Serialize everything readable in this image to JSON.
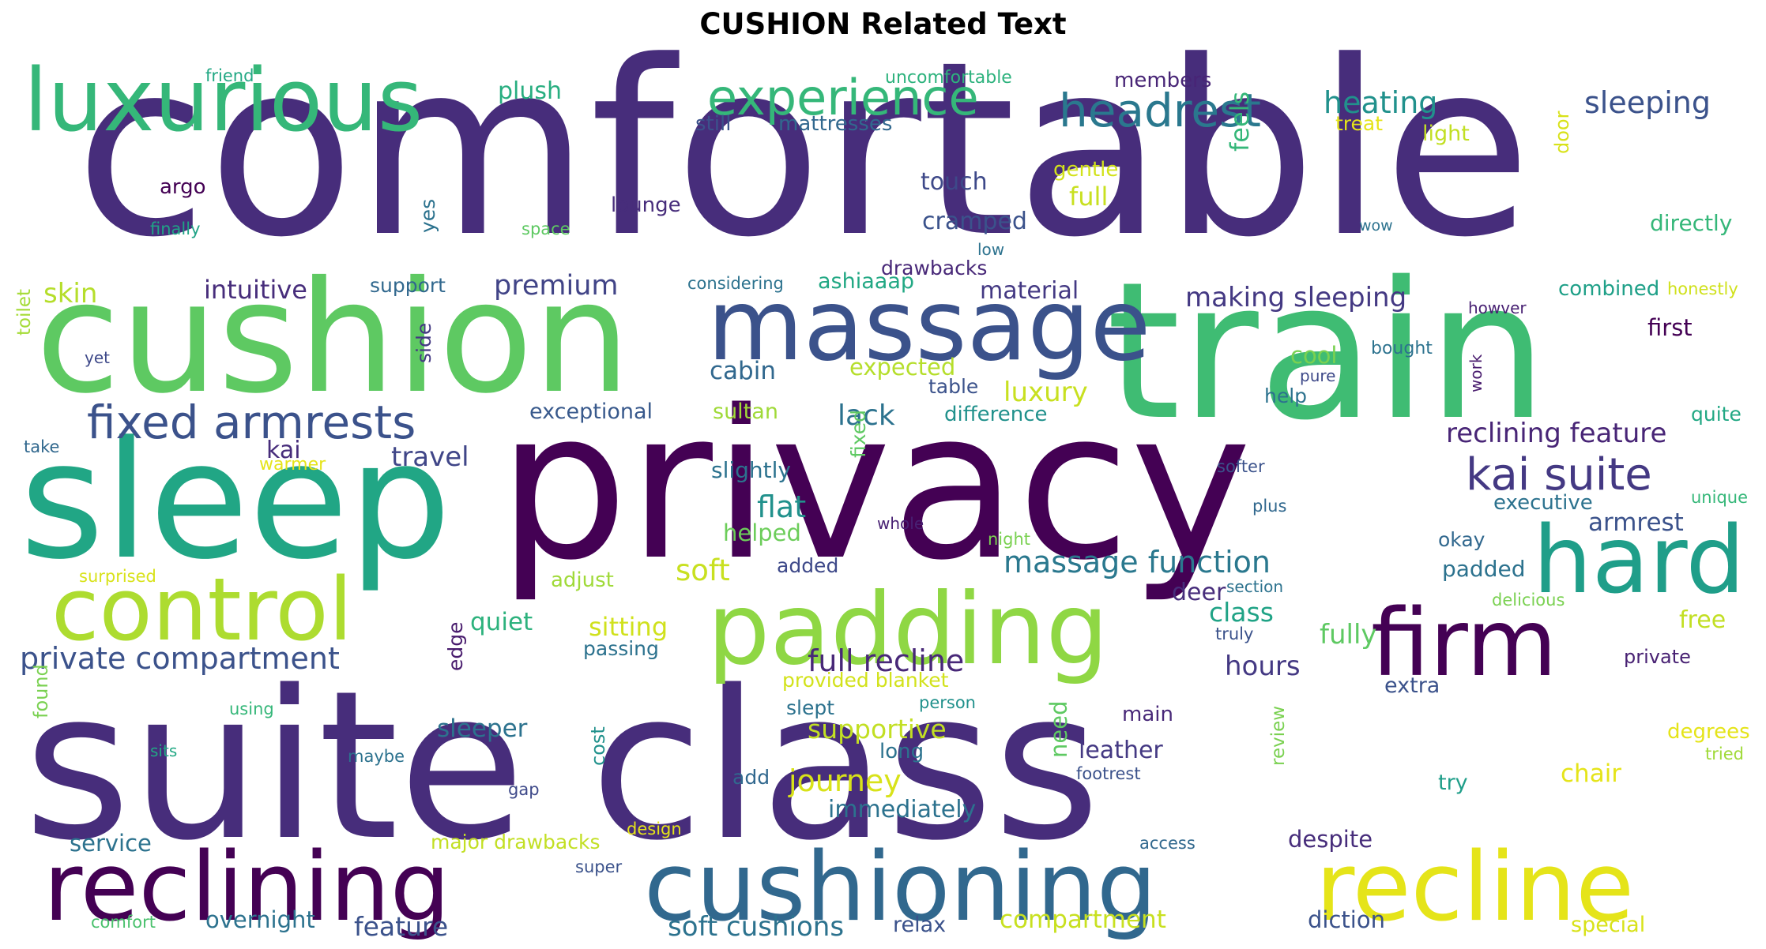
{
  "title": "CUSHION Related Text",
  "colors": {
    "darkPurple": "#440154",
    "indigo": "#472d7b",
    "deepBlue": "#3b528b",
    "steelBlue": "#2c728e",
    "teal": "#21918c",
    "seaGreen": "#28ae80",
    "green": "#5ec962",
    "lime": "#addc30",
    "yellow": "#e5e419"
  },
  "words": [
    {
      "text": "comfortable",
      "color": "#472d7b"
    },
    {
      "text": "cushion",
      "color": "#5ec962"
    },
    {
      "text": "train",
      "color": "#3fbc73"
    },
    {
      "text": "privacy",
      "color": "#440154"
    },
    {
      "text": "sleep",
      "color": "#21a685"
    },
    {
      "text": "suite class",
      "color": "#472d7b"
    },
    {
      "text": "massage",
      "color": "#3b528b"
    },
    {
      "text": "luxurious",
      "color": "#35b779"
    },
    {
      "text": "padding",
      "color": "#8fd744"
    },
    {
      "text": "hard",
      "color": "#1f9e89"
    },
    {
      "text": "firm",
      "color": "#440154"
    },
    {
      "text": "control",
      "color": "#addc30"
    },
    {
      "text": "reclining",
      "color": "#440154"
    },
    {
      "text": "cushioning",
      "color": "#31688e"
    },
    {
      "text": "recline",
      "color": "#e5e419"
    },
    {
      "text": "experience",
      "color": "#35b779"
    },
    {
      "text": "headrest",
      "color": "#2a788e"
    },
    {
      "text": "fixed armrests",
      "color": "#3b528b"
    },
    {
      "text": "kai suite",
      "color": "#443983"
    },
    {
      "text": "heating",
      "color": "#21918c"
    },
    {
      "text": "sleeping",
      "color": "#3b528b"
    },
    {
      "text": "feels",
      "color": "#35b779"
    },
    {
      "text": "plush",
      "color": "#28ae80"
    },
    {
      "text": "uncomfortable",
      "color": "#2db27d"
    },
    {
      "text": "members",
      "color": "#482576"
    },
    {
      "text": "friend",
      "color": "#22a884"
    },
    {
      "text": "still",
      "color": "#3b528b"
    },
    {
      "text": "mattresses",
      "color": "#31688e"
    },
    {
      "text": "treat",
      "color": "#e5e419"
    },
    {
      "text": "light",
      "color": "#c2df23"
    },
    {
      "text": "door",
      "color": "#d8e219"
    },
    {
      "text": "argo",
      "color": "#440154"
    },
    {
      "text": "touch",
      "color": "#3e4989"
    },
    {
      "text": "gentle",
      "color": "#d2e21b"
    },
    {
      "text": "full",
      "color": "#c8e020"
    },
    {
      "text": "lounge",
      "color": "#472d7b"
    },
    {
      "text": "finally",
      "color": "#20a386"
    },
    {
      "text": "space",
      "color": "#5ec962"
    },
    {
      "text": "yes",
      "color": "#2c728e"
    },
    {
      "text": "cramped",
      "color": "#3b528b"
    },
    {
      "text": "wow",
      "color": "#2c728e"
    },
    {
      "text": "directly",
      "color": "#35b779"
    },
    {
      "text": "low",
      "color": "#2c728e"
    },
    {
      "text": "drawbacks",
      "color": "#482878"
    },
    {
      "text": "skin",
      "color": "#b5de2b"
    },
    {
      "text": "intuitive",
      "color": "#472d7b"
    },
    {
      "text": "support",
      "color": "#31688e"
    },
    {
      "text": "premium",
      "color": "#414487"
    },
    {
      "text": "considering",
      "color": "#2c728e"
    },
    {
      "text": "ashiaaap",
      "color": "#22a884"
    },
    {
      "text": "material",
      "color": "#443983"
    },
    {
      "text": "making sleeping",
      "color": "#443983"
    },
    {
      "text": "combined",
      "color": "#1fa088"
    },
    {
      "text": "honestly",
      "color": "#d0e11c"
    },
    {
      "text": "toilet",
      "color": "#a5db36"
    },
    {
      "text": "yet",
      "color": "#3e4989"
    },
    {
      "text": "side",
      "color": "#443983"
    },
    {
      "text": "howver",
      "color": "#482173"
    },
    {
      "text": "first",
      "color": "#440154"
    },
    {
      "text": "bought",
      "color": "#2c728e"
    },
    {
      "text": "work",
      "color": "#481b6d"
    },
    {
      "text": "cool",
      "color": "#7ad151"
    },
    {
      "text": "pure",
      "color": "#3e4989"
    },
    {
      "text": "cabin",
      "color": "#31688e"
    },
    {
      "text": "expected",
      "color": "#b5de2b"
    },
    {
      "text": "table",
      "color": "#3b528b"
    },
    {
      "text": "luxury",
      "color": "#c8e020"
    },
    {
      "text": "help",
      "color": "#2c728e"
    },
    {
      "text": "exceptional",
      "color": "#38598c"
    },
    {
      "text": "sultan",
      "color": "#a0da39"
    },
    {
      "text": "lack",
      "color": "#2c728e"
    },
    {
      "text": "difference",
      "color": "#21918c"
    },
    {
      "text": "quite",
      "color": "#22a884"
    },
    {
      "text": "take",
      "color": "#31688e"
    },
    {
      "text": "kai",
      "color": "#472d7b"
    },
    {
      "text": "travel",
      "color": "#404688"
    },
    {
      "text": "warmer",
      "color": "#e5e419"
    },
    {
      "text": "reclining feature",
      "color": "#482576"
    },
    {
      "text": "slightly",
      "color": "#2c728e"
    },
    {
      "text": "fixed",
      "color": "#5ec962"
    },
    {
      "text": "softer",
      "color": "#3b528b"
    },
    {
      "text": "unique",
      "color": "#35b779"
    },
    {
      "text": "executive",
      "color": "#2c728e"
    },
    {
      "text": "flat",
      "color": "#21918c"
    },
    {
      "text": "armrest",
      "color": "#3b528b"
    },
    {
      "text": "plus",
      "color": "#31688e"
    },
    {
      "text": "helped",
      "color": "#6ccd5a"
    },
    {
      "text": "whole",
      "color": "#482173"
    },
    {
      "text": "night",
      "color": "#7ad151"
    },
    {
      "text": "okay",
      "color": "#31688e"
    },
    {
      "text": "massage function",
      "color": "#2a788e"
    },
    {
      "text": "added",
      "color": "#3e4989"
    },
    {
      "text": "soft",
      "color": "#c8e020"
    },
    {
      "text": "padded",
      "color": "#2c728e"
    },
    {
      "text": "surprised",
      "color": "#d8e219"
    },
    {
      "text": "adjust",
      "color": "#a0da39"
    },
    {
      "text": "section",
      "color": "#2c728e"
    },
    {
      "text": "delicious",
      "color": "#7ad151"
    },
    {
      "text": "deer",
      "color": "#472d7b"
    },
    {
      "text": "class",
      "color": "#20a386"
    },
    {
      "text": "free",
      "color": "#c2df23"
    },
    {
      "text": "quiet",
      "color": "#2db27d"
    },
    {
      "text": "sitting",
      "color": "#d0e11c"
    },
    {
      "text": "truly",
      "color": "#3b528b"
    },
    {
      "text": "fully",
      "color": "#5ec962"
    },
    {
      "text": "private compartment",
      "color": "#3b528b"
    },
    {
      "text": "full recline",
      "color": "#482878"
    },
    {
      "text": "hours",
      "color": "#443983"
    },
    {
      "text": "passing",
      "color": "#2c728e"
    },
    {
      "text": "edge",
      "color": "#481b6d"
    },
    {
      "text": "private",
      "color": "#482173"
    },
    {
      "text": "provided blanket",
      "color": "#d2e21b"
    },
    {
      "text": "extra",
      "color": "#3b528b"
    },
    {
      "text": "found",
      "color": "#7ad151"
    },
    {
      "text": "using",
      "color": "#35b779"
    },
    {
      "text": "person",
      "color": "#21918c"
    },
    {
      "text": "slept",
      "color": "#2c728e"
    },
    {
      "text": "review",
      "color": "#7ad151"
    },
    {
      "text": "main",
      "color": "#482878"
    },
    {
      "text": "sleeper",
      "color": "#2c728e"
    },
    {
      "text": "supportive",
      "color": "#c2df23"
    },
    {
      "text": "sits",
      "color": "#22a884"
    },
    {
      "text": "cost",
      "color": "#21918c"
    },
    {
      "text": "need",
      "color": "#5ec962"
    },
    {
      "text": "degrees",
      "color": "#e5e419"
    },
    {
      "text": "tried",
      "color": "#a0da39"
    },
    {
      "text": "maybe",
      "color": "#2c728e"
    },
    {
      "text": "long",
      "color": "#2c728e"
    },
    {
      "text": "leather",
      "color": "#443983"
    },
    {
      "text": "footrest",
      "color": "#3b528b"
    },
    {
      "text": "chair",
      "color": "#e5e419"
    },
    {
      "text": "gap",
      "color": "#3e4989"
    },
    {
      "text": "add",
      "color": "#31688e"
    },
    {
      "text": "journey",
      "color": "#d8e219"
    },
    {
      "text": "try",
      "color": "#1f9e89"
    },
    {
      "text": "immediately",
      "color": "#2c728e"
    },
    {
      "text": "service",
      "color": "#2c728e"
    },
    {
      "text": "major drawbacks",
      "color": "#c2df23"
    },
    {
      "text": "design",
      "color": "#e5e419"
    },
    {
      "text": "access",
      "color": "#31688e"
    },
    {
      "text": "despite",
      "color": "#472d7b"
    },
    {
      "text": "super",
      "color": "#3b528b"
    },
    {
      "text": "comfort",
      "color": "#4ac16d"
    },
    {
      "text": "overnight",
      "color": "#2c728e"
    },
    {
      "text": "feature",
      "color": "#3b528b"
    },
    {
      "text": "soft cushions",
      "color": "#2c728e"
    },
    {
      "text": "relax",
      "color": "#3b528b"
    },
    {
      "text": "compartment",
      "color": "#c8e020"
    },
    {
      "text": "diction",
      "color": "#3b528b"
    },
    {
      "text": "special",
      "color": "#d8e219"
    }
  ]
}
